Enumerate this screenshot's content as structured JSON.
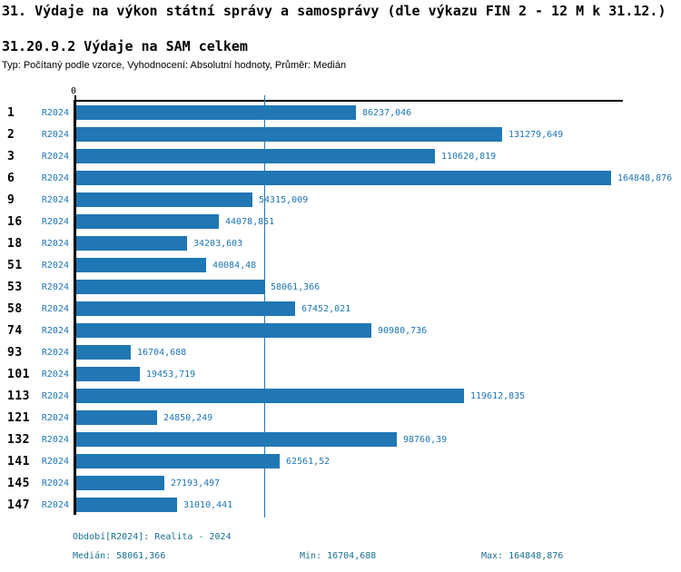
{
  "header": {
    "title": "31. Výdaje na výkon státní správy a samosprávy (dle výkazu FIN 2 - 12 M k 31.12.)",
    "subtitle": "31.20.9.2 Výdaje na SAM celkem",
    "meta": "Typ: Počítaný podle vzorce, Vyhodnocení: Absolutní hodnoty, Průměr: Medián"
  },
  "chart_data": {
    "type": "bar",
    "orientation": "horizontal",
    "title": "31.20.9.2 Výdaje na SAM celkem",
    "categories": [
      "1",
      "2",
      "3",
      "6",
      "9",
      "16",
      "18",
      "51",
      "53",
      "58",
      "74",
      "93",
      "101",
      "113",
      "121",
      "132",
      "141",
      "145",
      "147"
    ],
    "series_label": "R2024",
    "values": [
      86237.046,
      131279.649,
      110620.819,
      164848.876,
      54315.009,
      44078.851,
      34203.603,
      40084.48,
      58061.366,
      67452.021,
      90980.736,
      16704.688,
      19453.719,
      119612.835,
      24850.249,
      98760.39,
      62561.52,
      27193.497,
      31010.441
    ],
    "value_labels": [
      "86237,046",
      "131279,649",
      "110620,819",
      "164848,876",
      "54315,009",
      "44078,851",
      "34203,603",
      "40084,48",
      "58061,366",
      "67452,021",
      "90980,736",
      "16704,688",
      "19453,719",
      "119612,835",
      "24850,249",
      "98760,39",
      "62561,52",
      "27193,497",
      "31010,441"
    ],
    "x_tick_labels": [
      "0"
    ],
    "xlim": [
      0,
      164848.876
    ],
    "median_line_value": 58061.366,
    "grid": false,
    "legend": "none",
    "bar_color": "#2077b4",
    "label_color": "#2077b4",
    "footer_color": "#1b7191"
  },
  "footer": {
    "period": "Období[R2024]: Realita - 2024",
    "median": "Medián: 58061,366",
    "min": "Min: 16704,688",
    "max": "Max: 164848,876"
  }
}
